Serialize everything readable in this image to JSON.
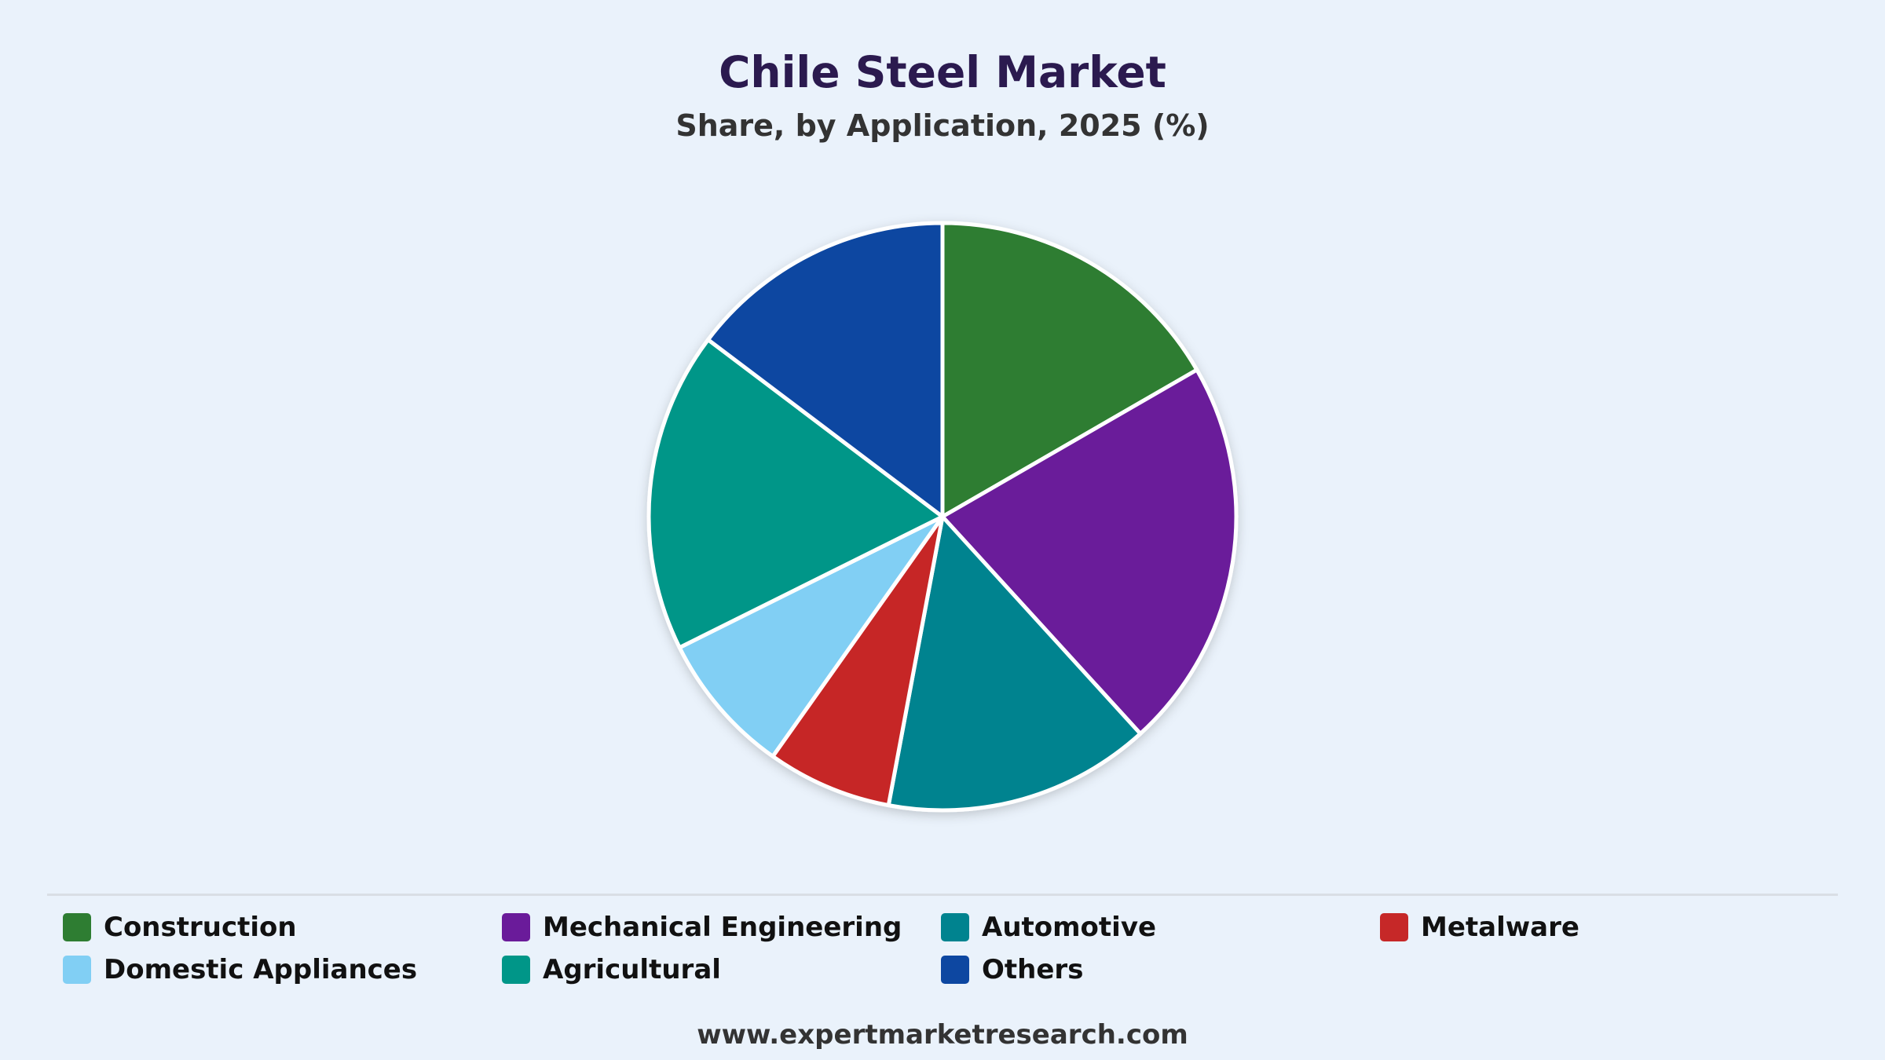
{
  "title": "Chile Steel Market",
  "subtitle": "Share, by Application, 2025 (%)",
  "source": "www.expertmarketresearch.com",
  "chart_data": {
    "type": "pie",
    "title": "Chile Steel Market",
    "subtitle": "Share, by Application, 2025 (%)",
    "legend_position": "bottom",
    "slices": [
      {
        "label": "Construction",
        "value": 17,
        "color": "#2e7d32"
      },
      {
        "label": "Mechanical Engineering",
        "value": 22,
        "color": "#6a1b9a"
      },
      {
        "label": "Automotive",
        "value": 15,
        "color": "#00838f"
      },
      {
        "label": "Metalware",
        "value": 7,
        "color": "#c62828"
      },
      {
        "label": "Domestic Appliances",
        "value": 8,
        "color": "#81cff4"
      },
      {
        "label": "Agricultural",
        "value": 18,
        "color": "#009688"
      },
      {
        "label": "Others",
        "value": 15,
        "color": "#0d47a1"
      }
    ]
  }
}
